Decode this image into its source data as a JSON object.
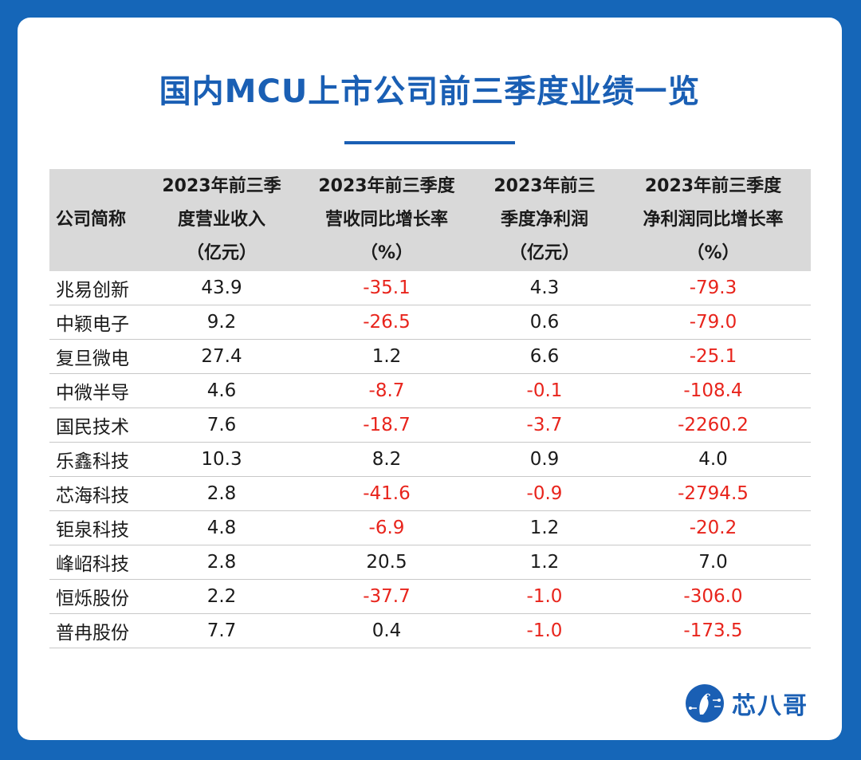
{
  "title": "国内MCU上市公司前三季度业绩一览",
  "table": {
    "headers": [
      [
        "公司简称"
      ],
      [
        "2023年前三季",
        "度营业收入",
        "（亿元）"
      ],
      [
        "2023年前三季度",
        "营收同比增长率",
        "（%）"
      ],
      [
        "2023年前三",
        "季度净利润",
        "（亿元）"
      ],
      [
        "2023年前三季度",
        "净利润同比增长率",
        "（%）"
      ]
    ],
    "rows": [
      [
        "兆易创新",
        "43.9",
        "-35.1",
        "4.3",
        "-79.3"
      ],
      [
        "中颖电子",
        "9.2",
        "-26.5",
        "0.6",
        "-79.0"
      ],
      [
        "复旦微电",
        "27.4",
        "1.2",
        "6.6",
        "-25.1"
      ],
      [
        "中微半导",
        "4.6",
        "-8.7",
        "-0.1",
        "-108.4"
      ],
      [
        "国民技术",
        "7.6",
        "-18.7",
        "-3.7",
        "-2260.2"
      ],
      [
        "乐鑫科技",
        "10.3",
        "8.2",
        "0.9",
        "4.0"
      ],
      [
        "芯海科技",
        "2.8",
        "-41.6",
        "-0.9",
        "-2794.5"
      ],
      [
        "钜泉科技",
        "4.8",
        "-6.9",
        "1.2",
        "-20.2"
      ],
      [
        "峰岹科技",
        "2.8",
        "20.5",
        "1.2",
        "7.0"
      ],
      [
        "恒烁股份",
        "2.2",
        "-37.7",
        "-1.0",
        "-306.0"
      ],
      [
        "普冉股份",
        "7.7",
        "0.4",
        "-1.0",
        "-173.5"
      ]
    ]
  },
  "logo": {
    "text": "芯八哥"
  },
  "colors": {
    "accent": "#1a5fb4",
    "negative": "#e8241c",
    "background": "#1566b8",
    "header_bg": "#d9d9d9"
  }
}
